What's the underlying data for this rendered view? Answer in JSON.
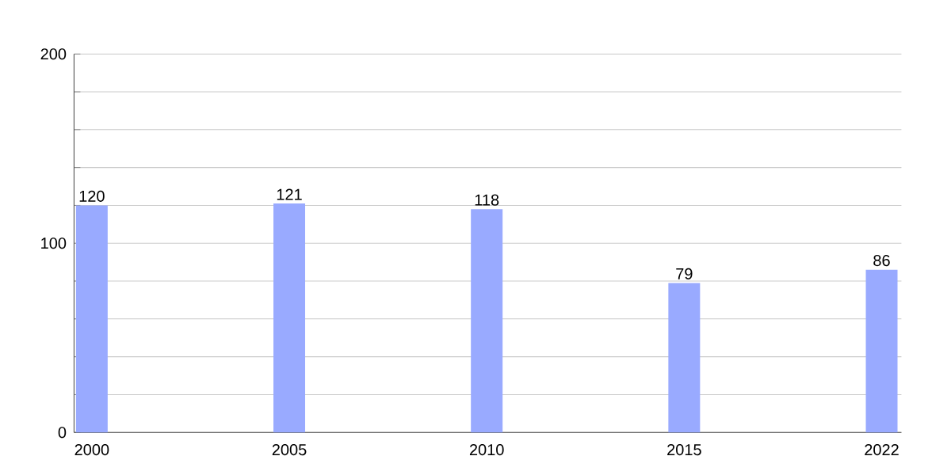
{
  "chart_data": {
    "type": "bar",
    "categories": [
      "2000",
      "2005",
      "2010",
      "2015",
      "2022"
    ],
    "values": [
      120,
      121,
      118,
      79,
      86
    ],
    "color": "#99aaff",
    "ylim": [
      0,
      200
    ],
    "yticks": [
      0,
      {
        "value": 20,
        "label": null
      },
      {
        "value": 40,
        "label": null
      },
      {
        "value": 60,
        "label": null
      },
      {
        "value": 80,
        "label": null
      },
      100,
      {
        "value": 120,
        "label": null
      },
      {
        "value": 140,
        "label": null
      },
      {
        "value": 160,
        "label": null
      },
      {
        "value": 180,
        "label": null
      },
      200
    ],
    "grid": "y",
    "data_labels": true
  }
}
